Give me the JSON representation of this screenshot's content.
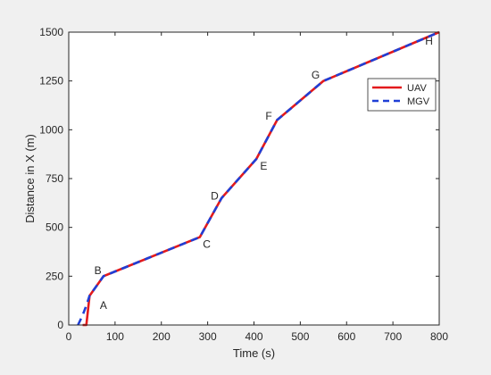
{
  "chart_data": {
    "type": "line",
    "xlabel": "Time (s)",
    "ylabel": "Distance in X (m)",
    "xlim": [
      0,
      800
    ],
    "ylim": [
      0,
      1500
    ],
    "xticks": [
      0,
      100,
      200,
      300,
      400,
      500,
      600,
      700,
      800
    ],
    "yticks": [
      0,
      250,
      500,
      750,
      1000,
      1250,
      1500
    ],
    "grid": false,
    "legend_position": "top-right",
    "series": [
      {
        "name": "UAV",
        "color": "#e31a1c",
        "style": "solid",
        "x": [
          30,
          38,
          45,
          75,
          283,
          330,
          405,
          450,
          550,
          800
        ],
        "y": [
          0,
          0,
          150,
          250,
          450,
          650,
          850,
          1050,
          1250,
          1500
        ]
      },
      {
        "name": "MGV",
        "color": "#1f3fd6",
        "style": "dashed",
        "x": [
          20,
          30,
          38,
          45,
          75,
          283,
          330,
          405,
          450,
          550,
          800
        ],
        "y": [
          0,
          50,
          100,
          150,
          250,
          450,
          650,
          850,
          1050,
          1250,
          1500
        ]
      }
    ],
    "annotations": [
      {
        "text": "A",
        "x": 75,
        "y": 100
      },
      {
        "text": "B",
        "x": 63,
        "y": 280
      },
      {
        "text": "C",
        "x": 298,
        "y": 415
      },
      {
        "text": "D",
        "x": 315,
        "y": 660
      },
      {
        "text": "E",
        "x": 421,
        "y": 815
      },
      {
        "text": "F",
        "x": 432,
        "y": 1070
      },
      {
        "text": "G",
        "x": 533,
        "y": 1280
      },
      {
        "text": "H",
        "x": 778,
        "y": 1455
      }
    ]
  }
}
